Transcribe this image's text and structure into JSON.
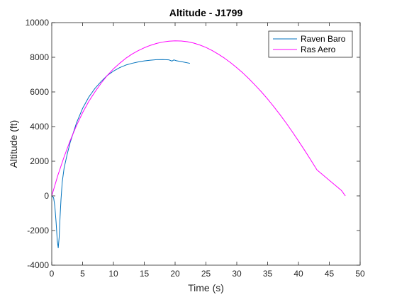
{
  "chart_data": {
    "type": "line",
    "title": "Altitude - J1799",
    "xlabel": "Time (s)",
    "ylabel": "Altitude (ft)",
    "xlim": [
      0,
      50
    ],
    "ylim": [
      -4000,
      10000
    ],
    "xticks": [
      0,
      5,
      10,
      15,
      20,
      25,
      30,
      35,
      40,
      45,
      50
    ],
    "yticks": [
      -4000,
      -2000,
      0,
      2000,
      4000,
      6000,
      8000,
      10000
    ],
    "xtick_labels": [
      "0",
      "5",
      "10",
      "15",
      "20",
      "25",
      "30",
      "35",
      "40",
      "45",
      "50"
    ],
    "ytick_labels": [
      "-4000",
      "-2000",
      "0",
      "2000",
      "4000",
      "6000",
      "8000",
      "10000"
    ],
    "grid": false,
    "legend": "top-right",
    "series": [
      {
        "name": "Raven Baro",
        "color": "#0072BD",
        "x": [
          0,
          0.3,
          0.5,
          0.7,
          0.9,
          1.05,
          1.2,
          1.35,
          1.5,
          1.7,
          2.0,
          2.5,
          3.0,
          4.0,
          5.0,
          6.0,
          7.0,
          8.0,
          9.0,
          10.0,
          11.0,
          12.0,
          13.0,
          14.0,
          15.0,
          16.0,
          17.0,
          18.0,
          19.0,
          19.5,
          19.8,
          20.2,
          21.0,
          22.4
        ],
        "y": [
          0,
          -100,
          -600,
          -1500,
          -2600,
          -3000,
          -2400,
          -1200,
          -200,
          800,
          1600,
          2400,
          3100,
          4200,
          5050,
          5700,
          6200,
          6600,
          6950,
          7200,
          7400,
          7550,
          7650,
          7730,
          7790,
          7830,
          7860,
          7870,
          7850,
          7780,
          7850,
          7800,
          7750,
          7650
        ]
      },
      {
        "name": "Ras Aero",
        "color": "#FF00FF",
        "x": [
          0,
          1,
          2,
          3,
          4,
          5,
          6,
          7,
          8,
          9,
          10,
          11,
          12,
          13,
          14,
          15,
          16,
          17,
          18,
          19,
          20,
          21,
          22,
          23,
          24,
          25,
          26,
          27,
          28,
          29,
          30,
          31,
          32,
          33,
          34,
          35,
          36,
          37,
          38,
          39,
          40,
          41,
          42,
          43,
          44,
          45,
          46,
          47,
          47.6
        ],
        "y": [
          0,
          1200,
          2250,
          3200,
          4050,
          4800,
          5450,
          6000,
          6500,
          6950,
          7330,
          7650,
          7940,
          8180,
          8380,
          8550,
          8690,
          8800,
          8880,
          8930,
          8950,
          8940,
          8900,
          8820,
          8710,
          8570,
          8390,
          8180,
          7950,
          7690,
          7400,
          7090,
          6750,
          6380,
          6000,
          5590,
          5150,
          4690,
          4210,
          3700,
          3170,
          2630,
          2070,
          1500,
          1200,
          900,
          600,
          300,
          0
        ]
      }
    ]
  }
}
